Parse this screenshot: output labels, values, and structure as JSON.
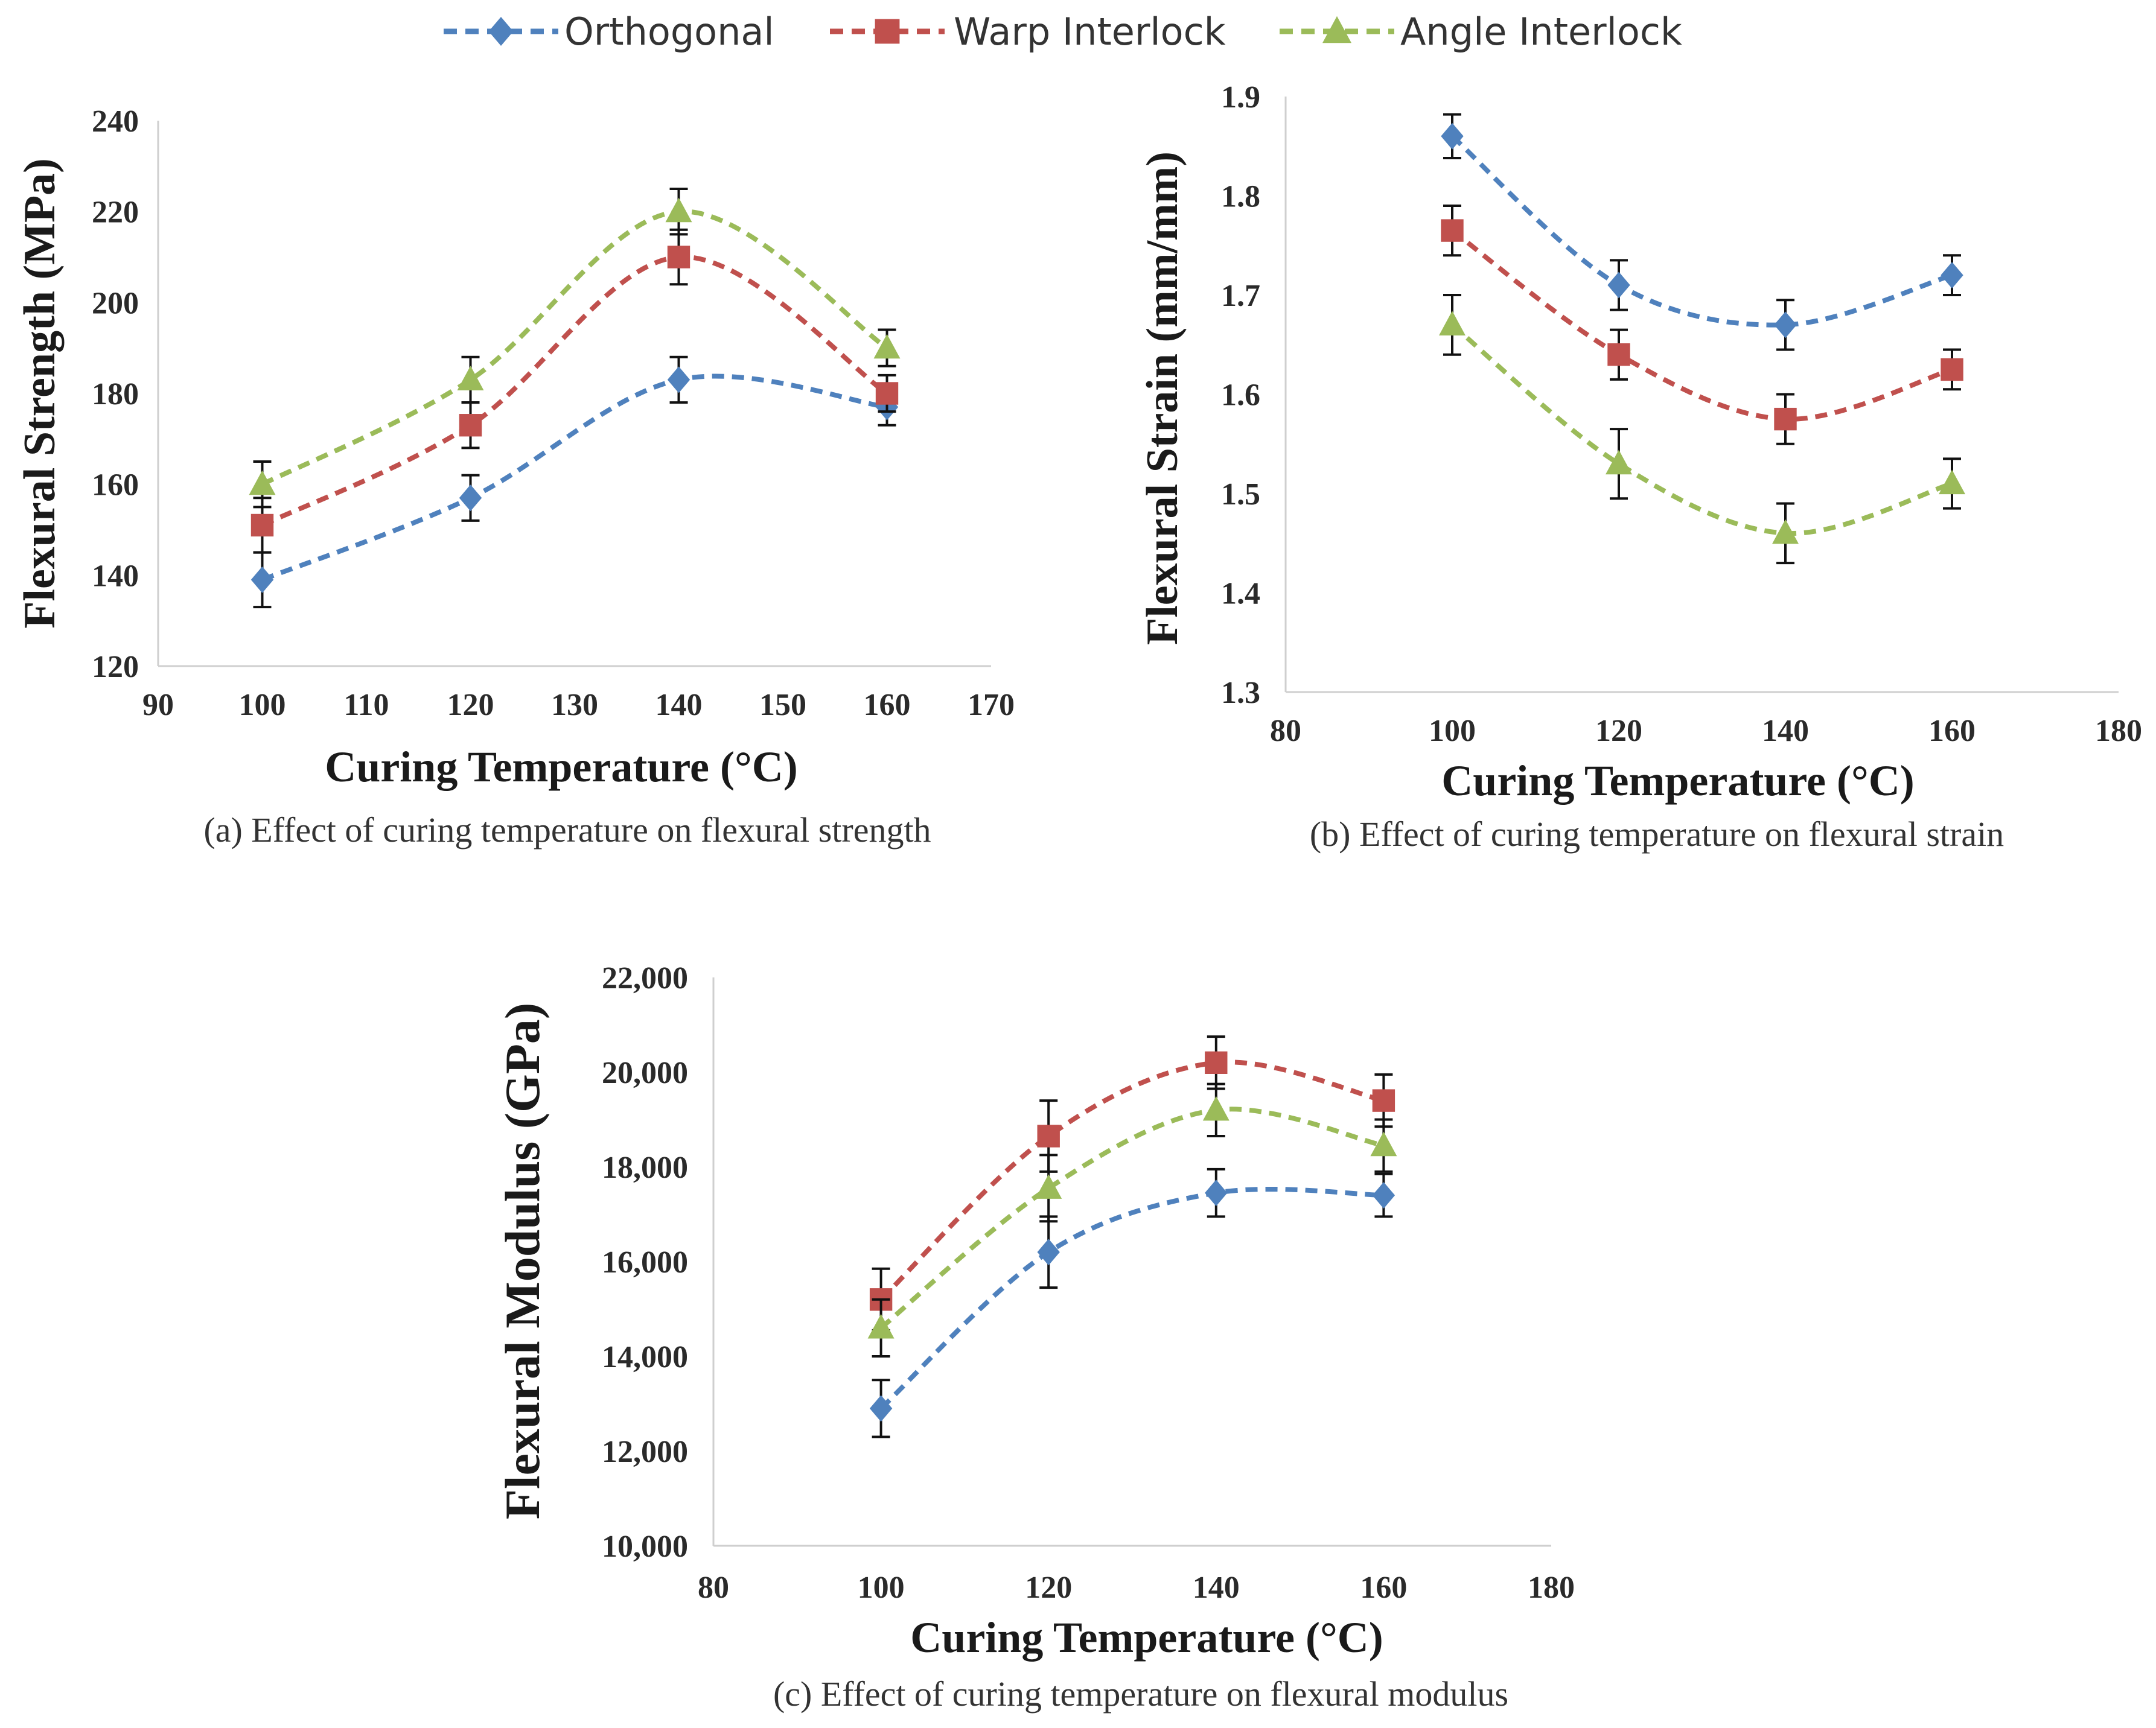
{
  "legend": {
    "position": "top-center",
    "entries": [
      {
        "name": "Orthogonal",
        "marker": "diamond",
        "color": "#4f81bd"
      },
      {
        "name": "Warp Interlock",
        "marker": "square",
        "color": "#c0504d"
      },
      {
        "name": "Angle Interlock",
        "marker": "triangle",
        "color": "#9bbb59"
      }
    ]
  },
  "chart_data": [
    {
      "type": "line",
      "panel": "a",
      "caption": "(a) Effect of curing temperature on flexural strength",
      "xlabel": "Curing Temperature (°C)",
      "ylabel": "Flexural Strength (MPa)",
      "xlim": [
        90,
        170
      ],
      "ylim": [
        120,
        240
      ],
      "x_ticks": [
        "90",
        "100",
        "110",
        "120",
        "130",
        "140",
        "150",
        "160",
        "170"
      ],
      "y_ticks": [
        "120",
        "140",
        "160",
        "180",
        "200",
        "220",
        "240"
      ],
      "x": [
        100,
        120,
        140,
        160
      ],
      "smooth": true,
      "line_style": "dashed",
      "grid": false,
      "series": [
        {
          "name": "Orthogonal",
          "values": [
            139,
            157,
            183,
            177
          ],
          "errors": [
            6,
            5,
            5,
            4
          ]
        },
        {
          "name": "Warp Interlock",
          "values": [
            151,
            173,
            210,
            180
          ],
          "errors": [
            6,
            5,
            6,
            4
          ]
        },
        {
          "name": "Angle Interlock",
          "values": [
            160,
            183,
            220,
            190
          ],
          "errors": [
            5,
            5,
            5,
            4
          ]
        }
      ]
    },
    {
      "type": "line",
      "panel": "b",
      "caption": "(b) Effect of curing temperature on flexural strain",
      "xlabel": "Curing Temperature (°C)",
      "ylabel": "Flexural Strain (mm/mm)",
      "xlim": [
        80,
        180
      ],
      "ylim": [
        1.3,
        1.9
      ],
      "x_ticks": [
        "80",
        "100",
        "120",
        "140",
        "160",
        "180"
      ],
      "y_ticks": [
        "1.3",
        "1.4",
        "1.5",
        "1.6",
        "1.7",
        "1.8",
        "1.9"
      ],
      "x": [
        100,
        120,
        140,
        160
      ],
      "smooth": true,
      "line_style": "dashed",
      "grid": false,
      "series": [
        {
          "name": "Orthogonal",
          "values": [
            1.86,
            1.71,
            1.67,
            1.72
          ],
          "errors": [
            0.022,
            0.025,
            0.025,
            0.02
          ]
        },
        {
          "name": "Warp Interlock",
          "values": [
            1.765,
            1.64,
            1.575,
            1.625
          ],
          "errors": [
            0.025,
            0.025,
            0.025,
            0.02
          ]
        },
        {
          "name": "Angle Interlock",
          "values": [
            1.67,
            1.53,
            1.46,
            1.51
          ],
          "errors": [
            0.03,
            0.035,
            0.03,
            0.025
          ]
        }
      ]
    },
    {
      "type": "line",
      "panel": "c",
      "caption": "(c) Effect of curing temperature on flexural modulus",
      "xlabel": "Curing Temperature (°C)",
      "ylabel": "Flexural Modulus (GPa)",
      "xlim": [
        80,
        180
      ],
      "ylim": [
        10000,
        22000
      ],
      "x_ticks": [
        "80",
        "100",
        "120",
        "140",
        "160",
        "180"
      ],
      "y_ticks": [
        "10,000",
        "12,000",
        "14,000",
        "16,000",
        "18,000",
        "20,000",
        "22,000"
      ],
      "x": [
        100,
        120,
        140,
        160
      ],
      "smooth": true,
      "line_style": "dashed",
      "grid": false,
      "series": [
        {
          "name": "Orthogonal",
          "values": [
            12900,
            16200,
            17450,
            17400
          ],
          "errors": [
            600,
            750,
            500,
            450
          ]
        },
        {
          "name": "Warp Interlock",
          "values": [
            15200,
            18650,
            20200,
            19400
          ],
          "errors": [
            650,
            750,
            550,
            550
          ]
        },
        {
          "name": "Angle Interlock",
          "values": [
            14600,
            17550,
            19200,
            18450
          ],
          "errors": [
            600,
            700,
            550,
            550
          ]
        }
      ]
    }
  ]
}
